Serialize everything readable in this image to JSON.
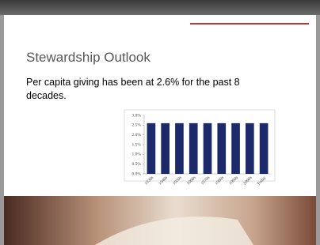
{
  "slide": {
    "title": "Stewardship Outlook",
    "body": "Per capita giving has been at 2.6% for the past 8 decades."
  },
  "chart_data": {
    "type": "bar",
    "categories": [
      "1930s",
      "1940s",
      "1950s",
      "1960s",
      "1970s",
      "1980s",
      "1990s",
      "2000s",
      "Today"
    ],
    "values": [
      2.6,
      2.6,
      2.6,
      2.6,
      2.6,
      2.6,
      2.6,
      2.6,
      2.6
    ],
    "color": "#1c2a6b",
    "ylim": [
      0,
      3
    ],
    "yticks": [
      {
        "value": 0,
        "label": "0.0%"
      },
      {
        "value": 0.5,
        "label": "0.5%"
      },
      {
        "value": 1,
        "label": "1.0%"
      },
      {
        "value": 1.5,
        "label": "1.5%"
      },
      {
        "value": 2,
        "label": "2.0%"
      },
      {
        "value": 2.5,
        "label": "2.5%"
      },
      {
        "value": 3,
        "label": "3.0%"
      }
    ]
  }
}
